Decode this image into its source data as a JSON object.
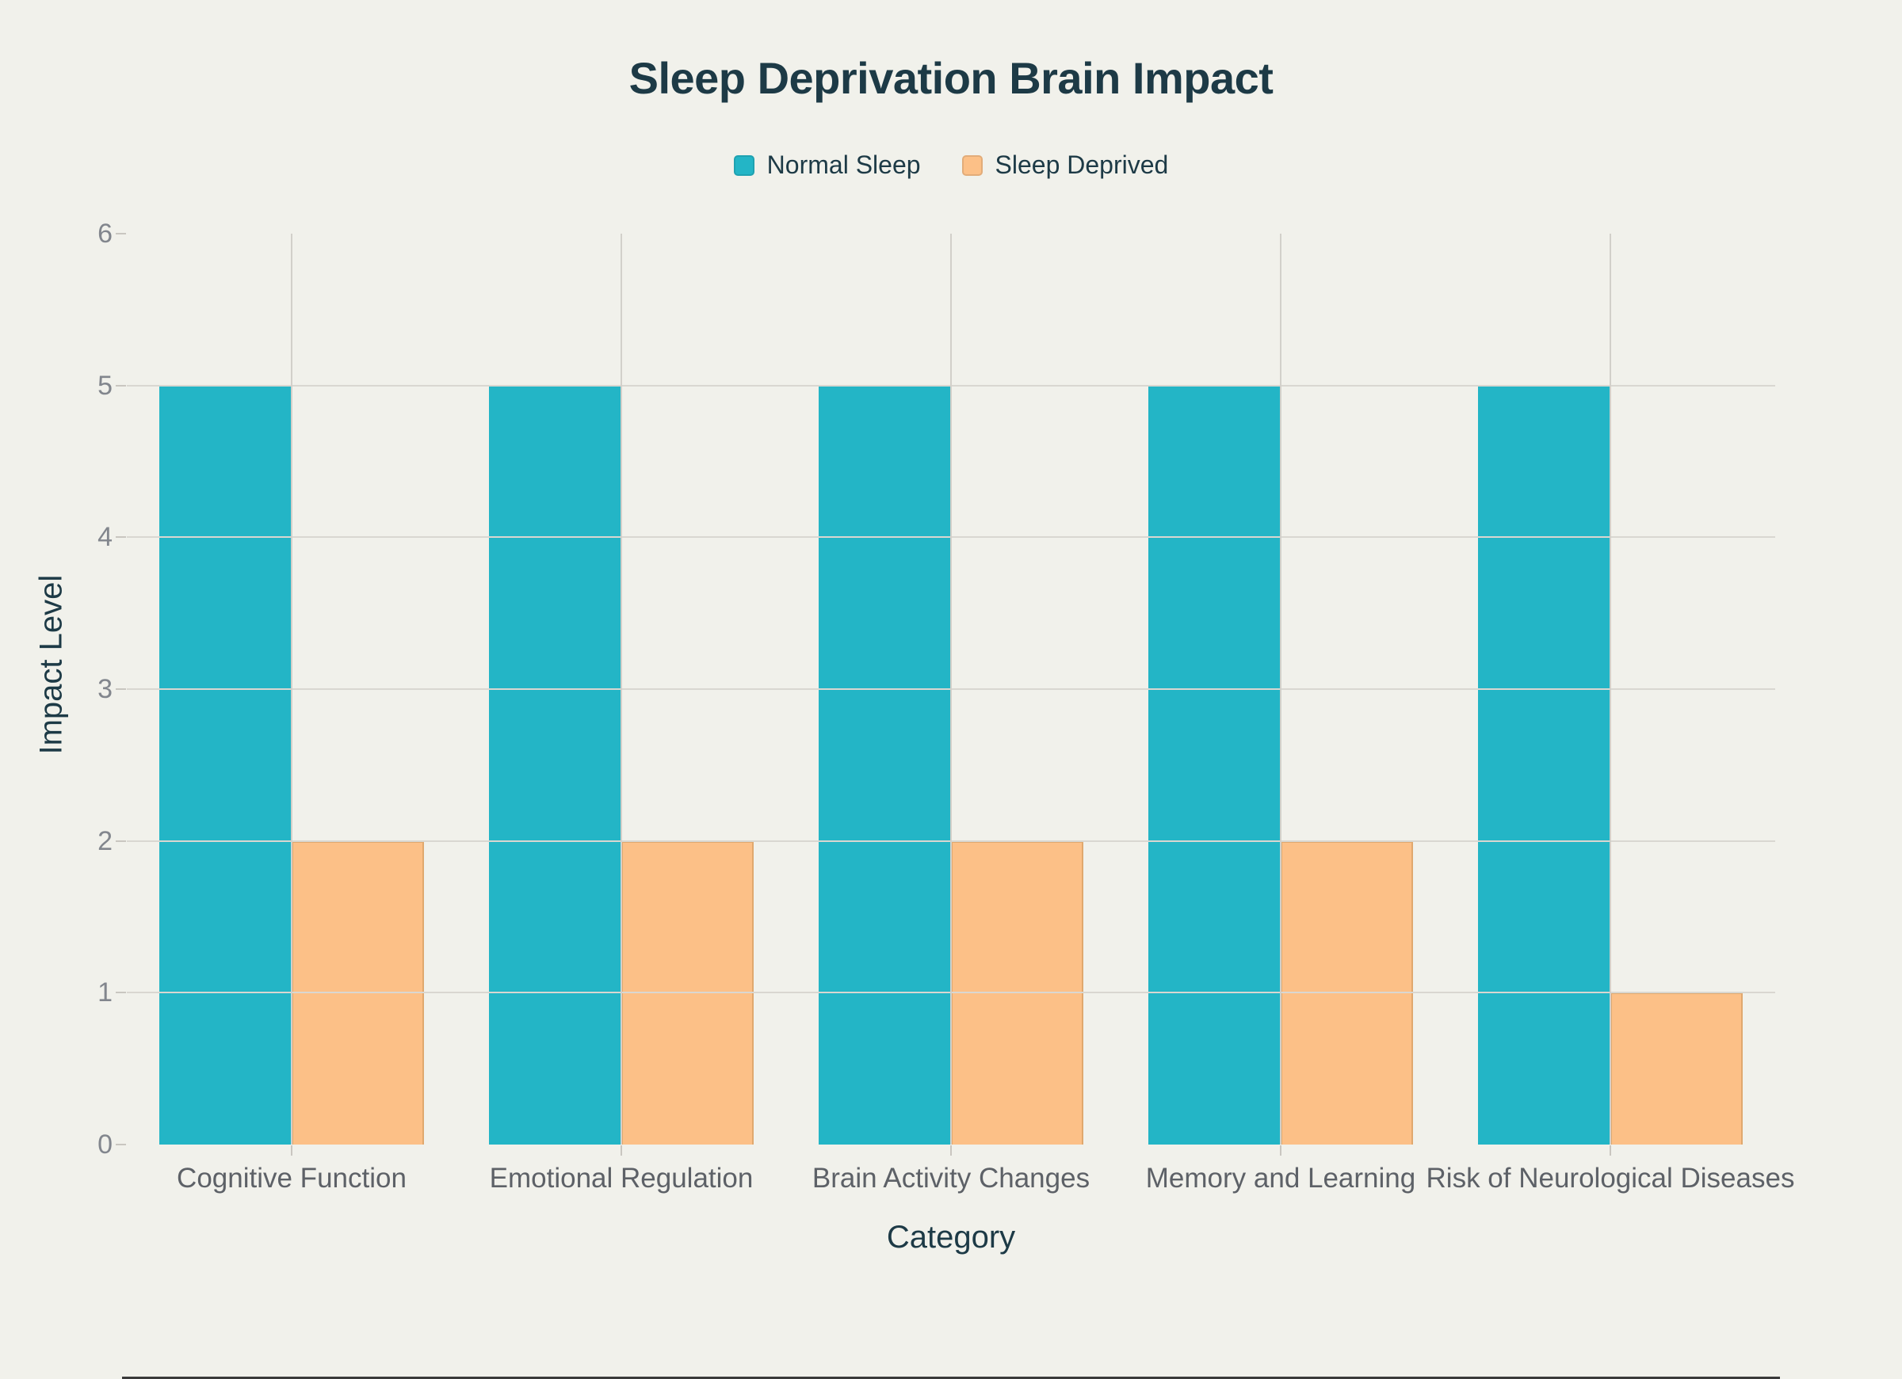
{
  "title": "Sleep Deprivation Brain Impact",
  "legend": {
    "items": [
      {
        "label": "Normal Sleep",
        "color": "#23b5c6",
        "border": "rgba(0,0,0,0.10)"
      },
      {
        "label": "Sleep Deprived",
        "color": "#fcc087",
        "border": "rgba(0,0,0,0.10)"
      }
    ]
  },
  "axes": {
    "y_title": "Impact Level",
    "x_title": "Category"
  },
  "chart_data": {
    "type": "bar",
    "title": "Sleep Deprivation Brain Impact",
    "categories": [
      "Cognitive Function",
      "Emotional Regulation",
      "Brain Activity Changes",
      "Memory and Learning",
      "Risk of Neurological Diseases"
    ],
    "series": [
      {
        "name": "Normal Sleep",
        "color": "#23b5c6",
        "border_color": "rgba(0,0,0,0)",
        "values": [
          5,
          5,
          5,
          5,
          5
        ]
      },
      {
        "name": "Sleep Deprived",
        "color": "#fcc087",
        "border_color": "rgba(190,140,80,0.45)",
        "values": [
          2,
          2,
          2,
          2,
          1
        ]
      }
    ],
    "xlabel": "Category",
    "ylabel": "Impact Level",
    "ylim": [
      0,
      6
    ],
    "yticks": [
      0,
      1,
      2,
      3,
      4,
      5,
      6
    ],
    "grid": {
      "horizontal_lines": [
        1,
        2,
        3,
        4,
        5
      ],
      "vertical_lines": "category-centers",
      "grid_on": true
    },
    "legend_position": "top-center"
  },
  "colors": {
    "background": "#f1f1eb",
    "grid_horizontal": "#d9d7d1",
    "grid_vertical": "#d2d0ca",
    "axis_line": "#3a3a3a",
    "tick_mark": "#c9c6c0",
    "tick_label": "#82868d",
    "category_label": "#5d6167",
    "axis_title": "#1d3a46",
    "title": "#1d3a46"
  }
}
